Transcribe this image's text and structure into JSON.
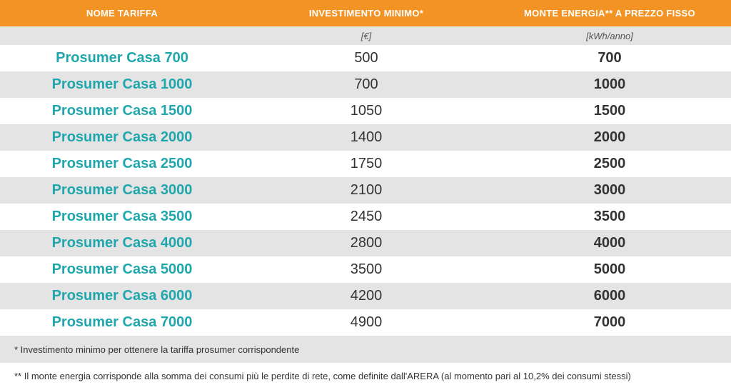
{
  "header": {
    "col1": "NOME TARIFFA",
    "col2": "INVESTIMENTO MINIMO*",
    "col3": "MONTE ENERGIA** A PREZZO FISSO"
  },
  "units": {
    "col1": "",
    "col2": "[€]",
    "col3": "[kWh/anno]"
  },
  "rows": [
    {
      "name": "Prosumer Casa 700",
      "investment": "500",
      "energy": "700"
    },
    {
      "name": "Prosumer Casa 1000",
      "investment": "700",
      "energy": "1000"
    },
    {
      "name": "Prosumer Casa 1500",
      "investment": "1050",
      "energy": "1500"
    },
    {
      "name": "Prosumer Casa 2000",
      "investment": "1400",
      "energy": "2000"
    },
    {
      "name": "Prosumer Casa 2500",
      "investment": "1750",
      "energy": "2500"
    },
    {
      "name": "Prosumer Casa 3000",
      "investment": "2100",
      "energy": "3000"
    },
    {
      "name": "Prosumer Casa 3500",
      "investment": "2450",
      "energy": "3500"
    },
    {
      "name": "Prosumer Casa 4000",
      "investment": "2800",
      "energy": "4000"
    },
    {
      "name": "Prosumer Casa 5000",
      "investment": "3500",
      "energy": "5000"
    },
    {
      "name": "Prosumer Casa 6000",
      "investment": "4200",
      "energy": "6000"
    },
    {
      "name": "Prosumer Casa 7000",
      "investment": "4900",
      "energy": "7000"
    }
  ],
  "notes": {
    "note1": "* Investimento minimo per ottenere la tariffa prosumer corrispondente",
    "note2": "** Il monte energia corrisponde alla somma dei consumi più le perdite di rete, come definite dall'ARERA (al momento pari al 10,2% dei consumi stessi)"
  },
  "colors": {
    "header_bg": "#f39324",
    "name_text": "#1fa7ad",
    "stripe_bg": "#e4e4e4"
  }
}
